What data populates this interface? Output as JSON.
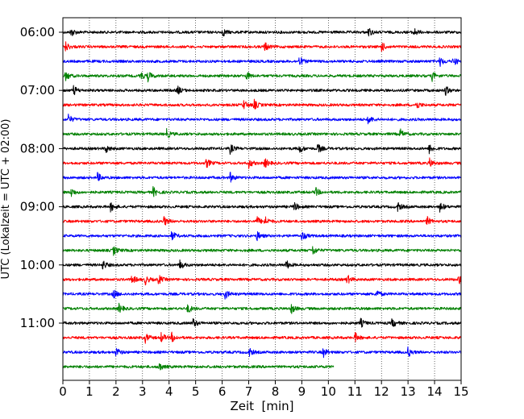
{
  "chart_data": {
    "type": "line",
    "title": "",
    "xlabel": "Zeit  [min]",
    "ylabel": "UTC (Lokalzeit = UTC + 02:00)",
    "xlim": [
      0,
      15
    ],
    "x_ticks": [
      "0",
      "1",
      "2",
      "3",
      "4",
      "5",
      "6",
      "7",
      "8",
      "9",
      "10",
      "11",
      "12",
      "13",
      "14",
      "15"
    ],
    "y_tick_labels": [
      "06:00",
      "07:00",
      "08:00",
      "09:00",
      "10:00",
      "11:00"
    ],
    "grid": "vertical dotted at each minute",
    "trace_interval_min": 15,
    "first_trace_utc": "06:00",
    "colors_cycle": [
      "#000000",
      "#ff0000",
      "#0000ff",
      "#008000"
    ],
    "series": [
      {
        "start": "06:00",
        "color": "#000000",
        "end_min": 15,
        "events_min": [
          0.3,
          6.0,
          11.5,
          13.2
        ]
      },
      {
        "start": "06:15",
        "color": "#ff0000",
        "end_min": 15,
        "events_min": [
          0.1,
          7.6,
          12.0
        ]
      },
      {
        "start": "06:30",
        "color": "#0000ff",
        "end_min": 15,
        "events_min": [
          8.9,
          14.2,
          14.7
        ]
      },
      {
        "start": "06:45",
        "color": "#008000",
        "end_min": 15,
        "events_min": [
          0.1,
          2.9,
          3.2,
          6.9,
          13.9
        ]
      },
      {
        "start": "07:00",
        "color": "#000000",
        "end_min": 15,
        "events_min": [
          0.4,
          4.3,
          14.4
        ]
      },
      {
        "start": "07:15",
        "color": "#ff0000",
        "end_min": 15,
        "events_min": [
          6.8,
          7.2,
          13.3
        ]
      },
      {
        "start": "07:30",
        "color": "#0000ff",
        "end_min": 15,
        "events_min": [
          0.2,
          11.5
        ]
      },
      {
        "start": "07:45",
        "color": "#008000",
        "end_min": 15,
        "events_min": [
          3.9,
          12.7
        ]
      },
      {
        "start": "08:00",
        "color": "#000000",
        "end_min": 15,
        "events_min": [
          1.6,
          6.3,
          8.9,
          9.6,
          13.8
        ]
      },
      {
        "start": "08:15",
        "color": "#ff0000",
        "end_min": 15,
        "events_min": [
          5.4,
          7.0,
          7.6,
          13.8
        ]
      },
      {
        "start": "08:30",
        "color": "#0000ff",
        "end_min": 15,
        "events_min": [
          1.3,
          6.3
        ]
      },
      {
        "start": "08:45",
        "color": "#008000",
        "end_min": 15,
        "events_min": [
          0.3,
          3.4,
          9.5
        ]
      },
      {
        "start": "09:00",
        "color": "#000000",
        "end_min": 15,
        "events_min": [
          1.8,
          8.7,
          12.6,
          14.2
        ]
      },
      {
        "start": "09:15",
        "color": "#ff0000",
        "end_min": 15,
        "events_min": [
          3.8,
          7.3,
          7.6,
          13.7
        ]
      },
      {
        "start": "09:30",
        "color": "#0000ff",
        "end_min": 15,
        "events_min": [
          4.1,
          7.3,
          9.0
        ]
      },
      {
        "start": "09:45",
        "color": "#008000",
        "end_min": 15,
        "events_min": [
          1.9,
          9.4
        ]
      },
      {
        "start": "10:00",
        "color": "#000000",
        "end_min": 15,
        "events_min": [
          1.5,
          4.4,
          8.4
        ]
      },
      {
        "start": "10:15",
        "color": "#ff0000",
        "end_min": 15,
        "events_min": [
          2.6,
          3.1,
          3.6,
          10.7,
          14.9
        ]
      },
      {
        "start": "10:30",
        "color": "#0000ff",
        "end_min": 15,
        "events_min": [
          1.9,
          6.1,
          11.8
        ]
      },
      {
        "start": "10:45",
        "color": "#008000",
        "end_min": 15,
        "events_min": [
          2.1,
          4.7,
          8.6
        ]
      },
      {
        "start": "11:00",
        "color": "#000000",
        "end_min": 15,
        "events_min": [
          4.9,
          11.2,
          12.4
        ]
      },
      {
        "start": "11:15",
        "color": "#ff0000",
        "end_min": 15,
        "events_min": [
          3.1,
          3.7,
          4.1,
          11.0
        ]
      },
      {
        "start": "11:30",
        "color": "#0000ff",
        "end_min": 15,
        "events_min": [
          2.0,
          7.0,
          9.8,
          13.0
        ]
      },
      {
        "start": "11:45",
        "color": "#008000",
        "end_min": 10.2,
        "events_min": [
          3.6
        ]
      }
    ]
  }
}
